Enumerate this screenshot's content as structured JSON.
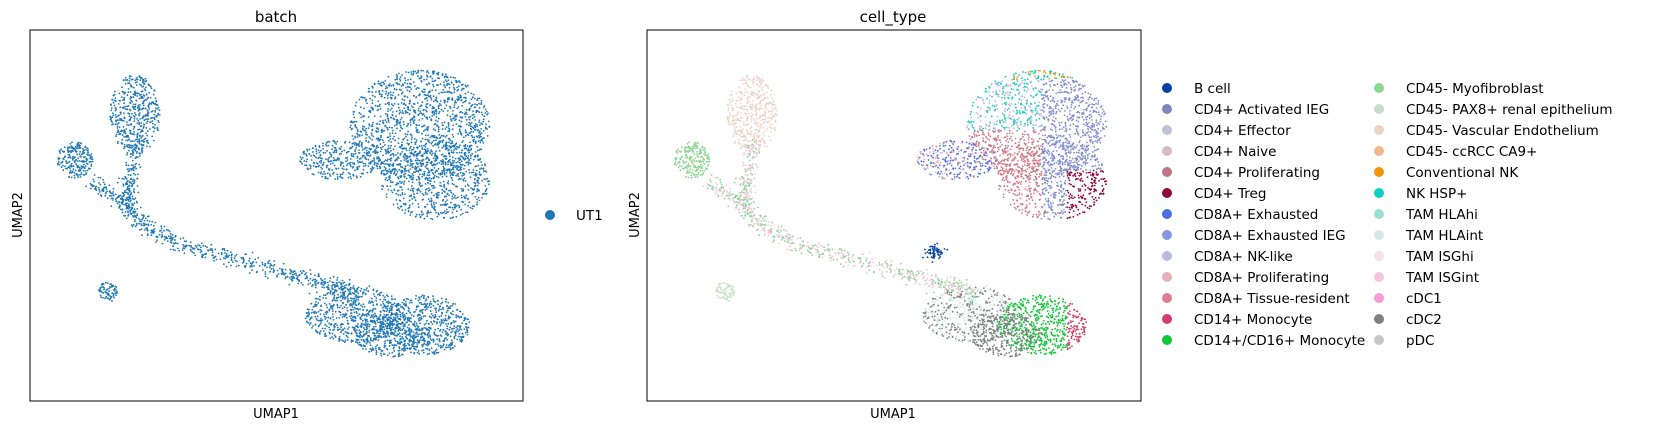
{
  "chart_data": [
    {
      "type": "scatter",
      "title": "batch",
      "xlabel": "UMAP1",
      "ylabel": "UMAP2",
      "grid": false,
      "legend_position": "right",
      "series": [
        {
          "name": "UT1",
          "color": "#1f77b4"
        }
      ]
    },
    {
      "type": "scatter",
      "title": "cell_type",
      "xlabel": "UMAP1",
      "ylabel": "UMAP2",
      "grid": false,
      "legend_position": "right",
      "series": [
        {
          "name": "B cell",
          "color": "#023fa5"
        },
        {
          "name": "CD4+ Activated IEG",
          "color": "#7d87b9"
        },
        {
          "name": "CD4+ Effector",
          "color": "#bec1d4"
        },
        {
          "name": "CD4+ Naive",
          "color": "#d6bcc0"
        },
        {
          "name": "CD4+ Proliferating",
          "color": "#bb7784"
        },
        {
          "name": "CD4+ Treg",
          "color": "#8e063b"
        },
        {
          "name": "CD8A+ Exhausted",
          "color": "#4a6fe3"
        },
        {
          "name": "CD8A+ Exhausted IEG",
          "color": "#8595e1"
        },
        {
          "name": "CD8A+ NK-like",
          "color": "#b5bbe3"
        },
        {
          "name": "CD8A+ Proliferating",
          "color": "#e6afb9"
        },
        {
          "name": "CD8A+ Tissue-resident",
          "color": "#e07b91"
        },
        {
          "name": "CD14+ Monocyte",
          "color": "#d33f6a"
        },
        {
          "name": "CD14+/CD16+ Monocyte",
          "color": "#11c638"
        },
        {
          "name": "CD45- Myofibroblast",
          "color": "#8dd593"
        },
        {
          "name": "CD45- PAX8+ renal epithelium",
          "color": "#c6dec7"
        },
        {
          "name": "CD45- Vascular Endothelium",
          "color": "#ead3c6"
        },
        {
          "name": "CD45- ccRCC CA9+",
          "color": "#f0b98d"
        },
        {
          "name": "Conventional NK",
          "color": "#ef9708"
        },
        {
          "name": "NK HSP+",
          "color": "#0fcfc0"
        },
        {
          "name": "TAM HLAhi",
          "color": "#9cded6"
        },
        {
          "name": "TAM HLAint",
          "color": "#d5eae7"
        },
        {
          "name": "TAM ISGhi",
          "color": "#f3e1eb"
        },
        {
          "name": "TAM ISGint",
          "color": "#f6c4e1"
        },
        {
          "name": "cDC1",
          "color": "#f79cd4"
        },
        {
          "name": "cDC2",
          "color": "#7f7f7f"
        },
        {
          "name": "pDC",
          "color": "#c7c7c7"
        }
      ]
    }
  ]
}
